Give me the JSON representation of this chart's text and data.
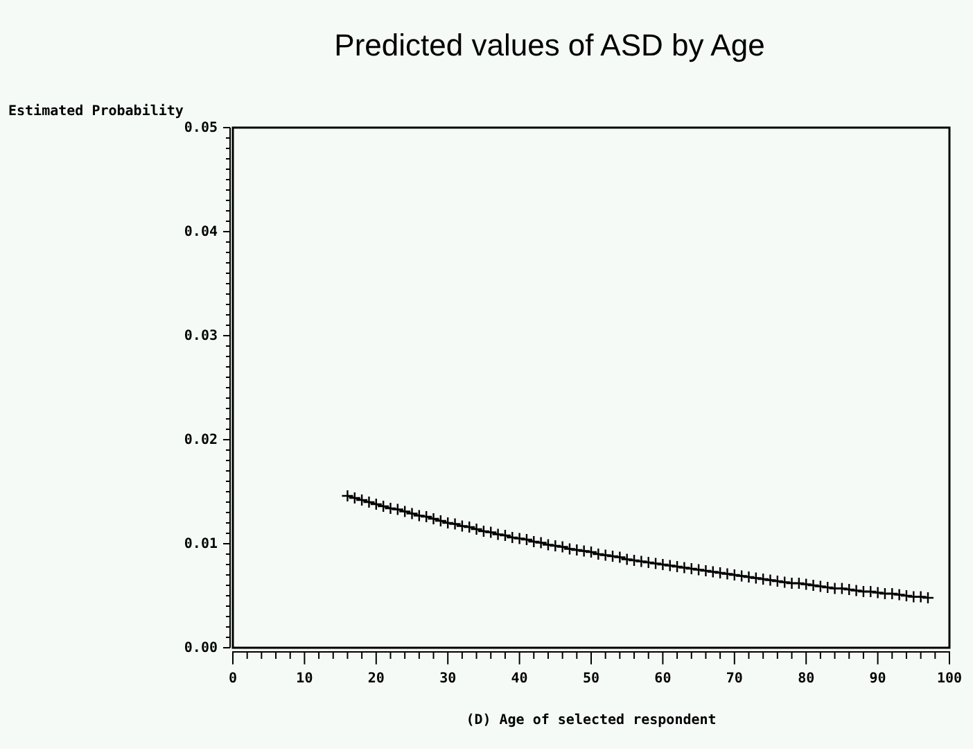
{
  "chart_data": {
    "type": "line",
    "title": "Predicted values of ASD by Age",
    "xlabel": "(D) Age of selected respondent",
    "ylabel": "Estimated Probability",
    "x": [
      16,
      17,
      18,
      19,
      20,
      21,
      22,
      23,
      24,
      25,
      26,
      27,
      28,
      29,
      30,
      31,
      32,
      33,
      34,
      35,
      36,
      37,
      38,
      39,
      40,
      41,
      42,
      43,
      44,
      45,
      46,
      47,
      48,
      49,
      50,
      51,
      52,
      53,
      54,
      55,
      56,
      57,
      58,
      59,
      60,
      61,
      62,
      63,
      64,
      65,
      66,
      67,
      68,
      69,
      70,
      71,
      72,
      73,
      74,
      75,
      76,
      77,
      78,
      79,
      80,
      81,
      82,
      83,
      84,
      85,
      86,
      87,
      88,
      89,
      90,
      91,
      92,
      93,
      94,
      95,
      96,
      97
    ],
    "series": [
      {
        "color": "#000000",
        "values": [
          0.0146,
          0.0144,
          0.0142,
          0.014,
          0.0138,
          0.0136,
          0.0134,
          0.0133,
          0.0131,
          0.0129,
          0.0127,
          0.0126,
          0.0124,
          0.0122,
          0.012,
          0.0119,
          0.0117,
          0.0116,
          0.0114,
          0.0112,
          0.0111,
          0.0109,
          0.0108,
          0.0106,
          0.0105,
          0.0104,
          0.0102,
          0.0101,
          0.0099,
          0.0098,
          0.0097,
          0.0095,
          0.0094,
          0.0093,
          0.0092,
          0.009,
          0.0089,
          0.0088,
          0.0087,
          0.0085,
          0.0084,
          0.0083,
          0.0082,
          0.0081,
          0.008,
          0.0079,
          0.0078,
          0.0077,
          0.0076,
          0.0075,
          0.0074,
          0.0073,
          0.0072,
          0.0071,
          0.007,
          0.0069,
          0.0068,
          0.0067,
          0.0066,
          0.0065,
          0.0064,
          0.0063,
          0.0062,
          0.0062,
          0.0061,
          0.006,
          0.0059,
          0.0058,
          0.0057,
          0.0057,
          0.0056,
          0.0055,
          0.0054,
          0.0054,
          0.0053,
          0.0052,
          0.0052,
          0.0051,
          0.005,
          0.0049,
          0.0049,
          0.0048
        ]
      }
    ],
    "marker": "cross",
    "line_style": "solid",
    "xlim": [
      0,
      100
    ],
    "xticks": [
      0,
      {
        "value": 2,
        "label": null
      },
      {
        "value": 4,
        "label": null
      },
      {
        "value": 6,
        "label": null
      },
      {
        "value": 8,
        "label": null
      },
      10,
      {
        "value": 12,
        "label": null
      },
      {
        "value": 14,
        "label": null
      },
      {
        "value": 16,
        "label": null
      },
      {
        "value": 18,
        "label": null
      },
      20,
      {
        "value": 22,
        "label": null
      },
      {
        "value": 24,
        "label": null
      },
      {
        "value": 26,
        "label": null
      },
      {
        "value": 28,
        "label": null
      },
      30,
      {
        "value": 32,
        "label": null
      },
      {
        "value": 34,
        "label": null
      },
      {
        "value": 36,
        "label": null
      },
      {
        "value": 38,
        "label": null
      },
      40,
      {
        "value": 42,
        "label": null
      },
      {
        "value": 44,
        "label": null
      },
      {
        "value": 46,
        "label": null
      },
      {
        "value": 48,
        "label": null
      },
      50,
      {
        "value": 52,
        "label": null
      },
      {
        "value": 54,
        "label": null
      },
      {
        "value": 56,
        "label": null
      },
      {
        "value": 58,
        "label": null
      },
      60,
      {
        "value": 62,
        "label": null
      },
      {
        "value": 64,
        "label": null
      },
      {
        "value": 66,
        "label": null
      },
      {
        "value": 68,
        "label": null
      },
      70,
      {
        "value": 72,
        "label": null
      },
      {
        "value": 74,
        "label": null
      },
      {
        "value": 76,
        "label": null
      },
      {
        "value": 78,
        "label": null
      },
      80,
      {
        "value": 82,
        "label": null
      },
      {
        "value": 84,
        "label": null
      },
      {
        "value": 86,
        "label": null
      },
      {
        "value": 88,
        "label": null
      },
      90,
      {
        "value": 92,
        "label": null
      },
      {
        "value": 94,
        "label": null
      },
      {
        "value": 96,
        "label": null
      },
      {
        "value": 98,
        "label": null
      },
      100
    ],
    "ylim": [
      0,
      0.05
    ],
    "yticks": [
      {
        "value": 0,
        "label": "0.00"
      },
      {
        "value": 0.001,
        "label": null
      },
      {
        "value": 0.002,
        "label": null
      },
      {
        "value": 0.003,
        "label": null
      },
      {
        "value": 0.004,
        "label": null
      },
      {
        "value": 0.005,
        "label": null
      },
      {
        "value": 0.006,
        "label": null
      },
      {
        "value": 0.007,
        "label": null
      },
      {
        "value": 0.008,
        "label": null
      },
      {
        "value": 0.009,
        "label": null
      },
      {
        "value": 0.01,
        "label": "0.01"
      },
      {
        "value": 0.011,
        "label": null
      },
      {
        "value": 0.012,
        "label": null
      },
      {
        "value": 0.013,
        "label": null
      },
      {
        "value": 0.014,
        "label": null
      },
      {
        "value": 0.015,
        "label": null
      },
      {
        "value": 0.016,
        "label": null
      },
      {
        "value": 0.017,
        "label": null
      },
      {
        "value": 0.018,
        "label": null
      },
      {
        "value": 0.019,
        "label": null
      },
      {
        "value": 0.02,
        "label": "0.02"
      },
      {
        "value": 0.021,
        "label": null
      },
      {
        "value": 0.022,
        "label": null
      },
      {
        "value": 0.023,
        "label": null
      },
      {
        "value": 0.024,
        "label": null
      },
      {
        "value": 0.025,
        "label": null
      },
      {
        "value": 0.026,
        "label": null
      },
      {
        "value": 0.027,
        "label": null
      },
      {
        "value": 0.028,
        "label": null
      },
      {
        "value": 0.029,
        "label": null
      },
      {
        "value": 0.03,
        "label": "0.03"
      },
      {
        "value": 0.031,
        "label": null
      },
      {
        "value": 0.032,
        "label": null
      },
      {
        "value": 0.033,
        "label": null
      },
      {
        "value": 0.034,
        "label": null
      },
      {
        "value": 0.035,
        "label": null
      },
      {
        "value": 0.036,
        "label": null
      },
      {
        "value": 0.037,
        "label": null
      },
      {
        "value": 0.038,
        "label": null
      },
      {
        "value": 0.039,
        "label": null
      },
      {
        "value": 0.04,
        "label": "0.04"
      },
      {
        "value": 0.041,
        "label": null
      },
      {
        "value": 0.042,
        "label": null
      },
      {
        "value": 0.043,
        "label": null
      },
      {
        "value": 0.044,
        "label": null
      },
      {
        "value": 0.045,
        "label": null
      },
      {
        "value": 0.046,
        "label": null
      },
      {
        "value": 0.047,
        "label": null
      },
      {
        "value": 0.048,
        "label": null
      },
      {
        "value": 0.049,
        "label": null
      },
      {
        "value": 0.05,
        "label": "0.05"
      }
    ]
  }
}
